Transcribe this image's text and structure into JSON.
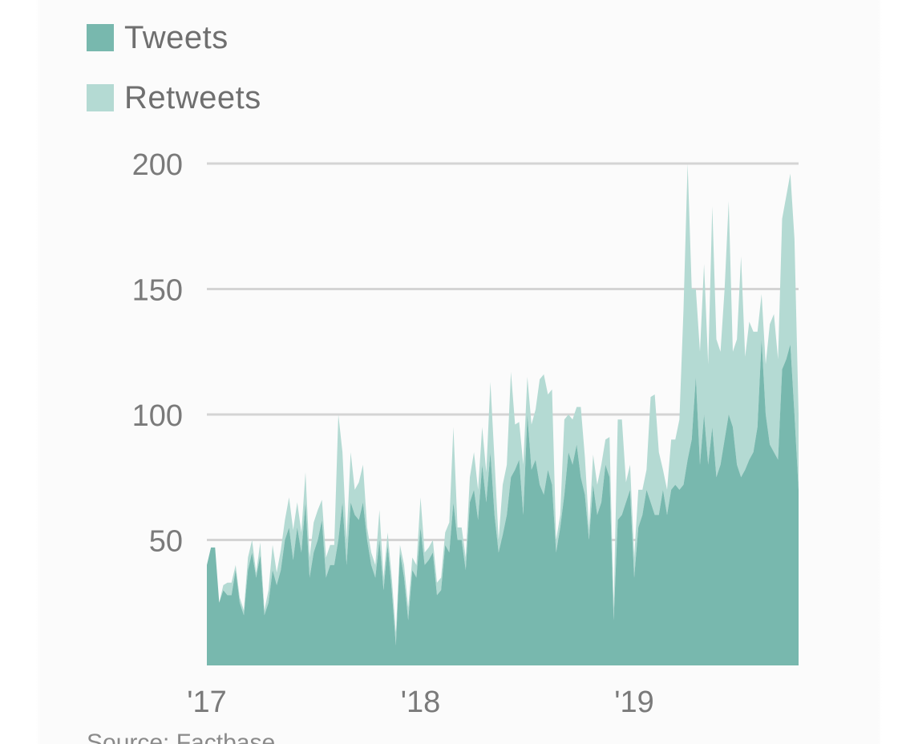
{
  "legend": {
    "tweets_label": "Tweets",
    "retweets_label": "Retweets"
  },
  "colors": {
    "tweets": "#78b8ae",
    "retweets": "#b4dad3",
    "grid": "#d4d4d4",
    "text": "#6f6f6f"
  },
  "source": "Source: Factbase",
  "chart_data": {
    "type": "area",
    "stacked": true,
    "x_unit": "week",
    "x_start": "2017-01",
    "x_ticks": [
      {
        "label": "'17",
        "x": 0
      },
      {
        "label": "'18",
        "x": 52
      },
      {
        "label": "'19",
        "x": 104
      }
    ],
    "ylim": [
      0,
      200
    ],
    "yticks": [
      200,
      150,
      100,
      50
    ],
    "grid": true,
    "legend_position": "top-left",
    "series": [
      {
        "name": "Tweets",
        "values": [
          40,
          47,
          47,
          25,
          30,
          28,
          28,
          38,
          25,
          20,
          38,
          45,
          35,
          44,
          20,
          25,
          38,
          32,
          38,
          50,
          55,
          42,
          55,
          45,
          65,
          35,
          45,
          50,
          58,
          35,
          40,
          40,
          50,
          65,
          40,
          65,
          60,
          58,
          65,
          50,
          40,
          35,
          50,
          30,
          48,
          30,
          8,
          45,
          35,
          18,
          38,
          35,
          55,
          40,
          42,
          45,
          28,
          30,
          48,
          45,
          65,
          50,
          50,
          38,
          65,
          70,
          58,
          80,
          65,
          85,
          60,
          45,
          52,
          60,
          75,
          78,
          82,
          60,
          100,
          78,
          82,
          72,
          68,
          78,
          72,
          45,
          55,
          68,
          85,
          80,
          88,
          75,
          68,
          50,
          72,
          60,
          65,
          80,
          75,
          18,
          58,
          60,
          65,
          70,
          35,
          55,
          60,
          70,
          65,
          60,
          60,
          70,
          60,
          70,
          72,
          70,
          72,
          82,
          90,
          115,
          80,
          100,
          80,
          95,
          75,
          80,
          90,
          100,
          95,
          80,
          75,
          78,
          82,
          85,
          95,
          130,
          100,
          88,
          85,
          82,
          118,
          122,
          128,
          100,
          70
        ],
        "color": "#78b8ae"
      },
      {
        "name": "Retweets",
        "values": [
          0,
          0,
          0,
          0,
          2,
          5,
          5,
          2,
          2,
          2,
          5,
          5,
          2,
          5,
          2,
          5,
          10,
          5,
          8,
          8,
          12,
          12,
          10,
          8,
          12,
          8,
          12,
          12,
          8,
          8,
          8,
          8,
          50,
          20,
          10,
          20,
          10,
          15,
          15,
          5,
          5,
          5,
          12,
          5,
          5,
          5,
          5,
          3,
          5,
          5,
          5,
          5,
          12,
          5,
          5,
          5,
          5,
          5,
          5,
          12,
          30,
          5,
          5,
          5,
          10,
          15,
          12,
          15,
          12,
          28,
          22,
          5,
          20,
          20,
          42,
          18,
          15,
          20,
          15,
          18,
          20,
          42,
          48,
          30,
          38,
          5,
          5,
          30,
          15,
          18,
          15,
          28,
          15,
          5,
          12,
          12,
          15,
          10,
          16,
          5,
          40,
          38,
          8,
          10,
          8,
          15,
          10,
          8,
          42,
          48,
          25,
          8,
          10,
          20,
          18,
          28,
          70,
          118,
          60,
          35,
          45,
          60,
          40,
          88,
          55,
          45,
          60,
          85,
          30,
          50,
          88,
          45,
          55,
          48,
          38,
          18,
          20,
          48,
          55,
          40,
          60,
          65,
          68,
          70,
          30
        ],
        "color": "#b4dad3"
      }
    ]
  }
}
